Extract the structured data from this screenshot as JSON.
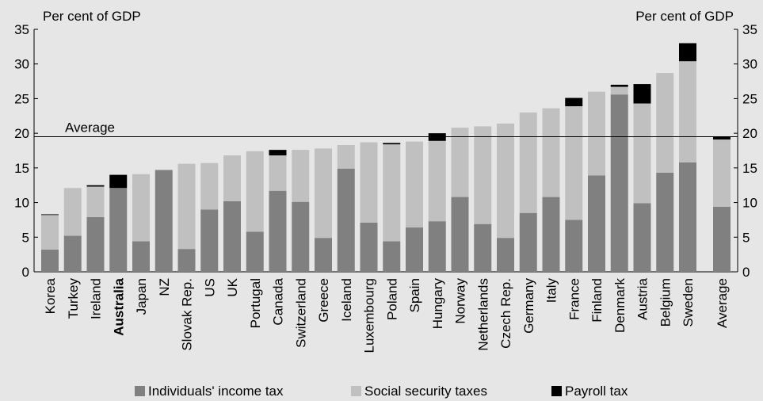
{
  "chart_data": {
    "type": "bar",
    "stacked": true,
    "y_unit_left": "Per cent of GDP",
    "y_unit_right": "Per cent of GDP",
    "ylim": [
      0,
      35
    ],
    "yticks": [
      0,
      5,
      10,
      15,
      20,
      25,
      30,
      35
    ],
    "average_line": {
      "label": "Average",
      "value": 19.5
    },
    "categories": [
      "Korea",
      "Turkey",
      "Ireland",
      "Australia",
      "Japan",
      "NZ",
      "Slovak Rep.",
      "US",
      "UK",
      "Portugal",
      "Canada",
      "Switzerland",
      "Greece",
      "Iceland",
      "Luxembourg",
      "Poland",
      "Spain",
      "Hungary",
      "Norway",
      "Netherlands",
      "Czech Rep.",
      "Germany",
      "Italy",
      "France",
      "Finland",
      "Denmark",
      "Austria",
      "Belgium",
      "Sweden",
      "Average"
    ],
    "bold_categories": [
      "Australia"
    ],
    "series": [
      {
        "name": "Individuals' income tax",
        "color": "#808080",
        "values": [
          3.2,
          5.2,
          7.9,
          12.1,
          4.4,
          14.7,
          3.3,
          9.0,
          10.2,
          5.8,
          11.7,
          10.1,
          4.9,
          14.9,
          7.1,
          4.4,
          6.4,
          7.3,
          10.8,
          6.9,
          4.9,
          8.5,
          10.8,
          7.5,
          13.9,
          25.6,
          9.9,
          14.3,
          15.8,
          9.4
        ]
      },
      {
        "name": "Social security taxes",
        "color": "#c0c0c0",
        "values": [
          5.0,
          6.9,
          4.4,
          0.0,
          9.7,
          0.0,
          12.3,
          6.7,
          6.6,
          11.6,
          5.1,
          7.5,
          12.9,
          3.4,
          11.6,
          14.0,
          12.4,
          11.6,
          10.0,
          14.1,
          16.5,
          14.5,
          12.8,
          16.4,
          12.1,
          1.1,
          14.4,
          14.4,
          14.6,
          9.7
        ]
      },
      {
        "name": "Payroll tax",
        "color": "#000000",
        "values": [
          0.1,
          0.0,
          0.2,
          1.9,
          0.0,
          0.0,
          0.0,
          0.0,
          0.0,
          0.0,
          0.8,
          0.0,
          0.0,
          0.0,
          0.0,
          0.2,
          0.0,
          1.1,
          0.0,
          0.0,
          0.0,
          0.0,
          0.0,
          1.2,
          0.0,
          0.3,
          2.8,
          0.0,
          2.6,
          0.4
        ]
      }
    ],
    "legend_position": "bottom",
    "grid": false
  }
}
